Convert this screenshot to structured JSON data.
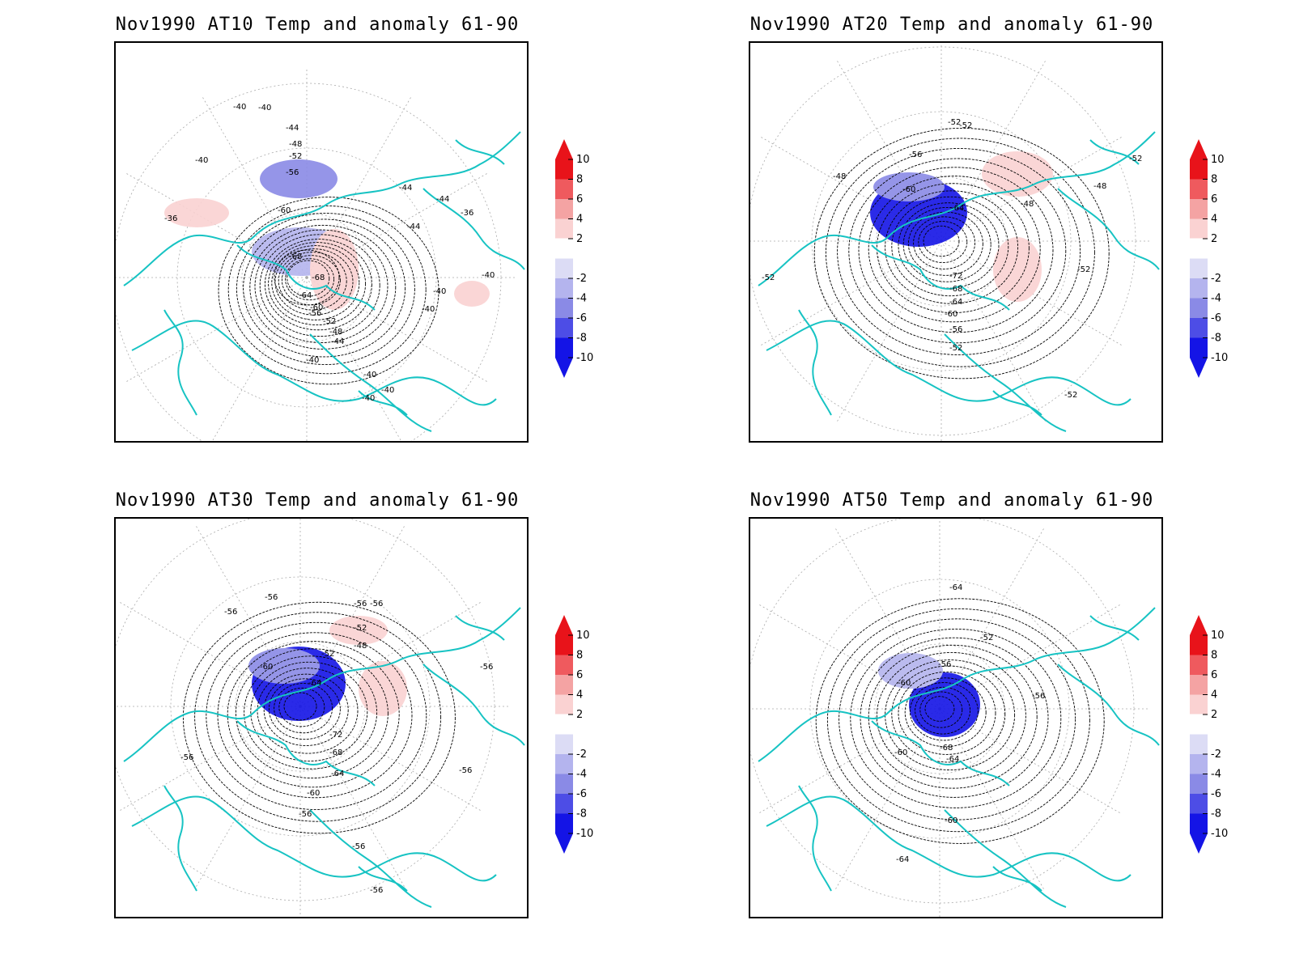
{
  "panels": [
    {
      "title": "Nov1990 AT10 Temp and anomaly 61-90",
      "contour_labels": [
        "-40",
        "-40",
        "-44",
        "-48",
        "-52",
        "-56",
        "-60",
        "-68",
        "-68",
        "-64",
        "-60",
        "-56",
        "-52",
        "-48",
        "-44",
        "-40",
        "-40",
        "-40",
        "-40",
        "-36",
        "-40",
        "-44",
        "-36",
        "-44",
        "-40",
        "-40",
        "-44",
        "-40"
      ],
      "anomaly_blobs": [
        {
          "sign": "neg",
          "level": 6
        },
        {
          "sign": "neg",
          "level": 4
        },
        {
          "sign": "pos",
          "level": 4
        },
        {
          "sign": "pos",
          "level": 2
        },
        {
          "sign": "pos",
          "level": 2
        }
      ]
    },
    {
      "title": "Nov1990 AT20 Temp and anomaly 61-90",
      "contour_labels": [
        "-52",
        "-52",
        "-56",
        "-48",
        "-60",
        "-64",
        "-48",
        "-52",
        "-48",
        "-52",
        "-72",
        "-68",
        "-64",
        "-60",
        "-56",
        "-52",
        "-52",
        "-52"
      ],
      "anomaly_blobs": [
        {
          "sign": "neg",
          "level": 10
        },
        {
          "sign": "neg",
          "level": 6
        },
        {
          "sign": "pos",
          "level": 4
        },
        {
          "sign": "pos",
          "level": 2
        }
      ]
    },
    {
      "title": "Nov1990 AT30 Temp and anomaly 61-90",
      "contour_labels": [
        "-56",
        "-56",
        "-56",
        "-56",
        "-52",
        "-48",
        "-52",
        "-60",
        "-64",
        "-72",
        "-68",
        "-64",
        "-60",
        "-56",
        "-56",
        "-56",
        "-56",
        "-56",
        "-56"
      ],
      "anomaly_blobs": [
        {
          "sign": "neg",
          "level": 10
        },
        {
          "sign": "neg",
          "level": 6
        },
        {
          "sign": "pos",
          "level": 2
        },
        {
          "sign": "pos",
          "level": 2
        }
      ]
    },
    {
      "title": "Nov1990 AT50 Temp and anomaly 61-90",
      "contour_labels": [
        "-64",
        "-52",
        "-56",
        "-60",
        "-68",
        "-64",
        "-56",
        "-60",
        "-60",
        "-64"
      ],
      "anomaly_blobs": [
        {
          "sign": "neg",
          "level": 10
        },
        {
          "sign": "neg",
          "level": 4
        }
      ]
    }
  ],
  "colorbar": {
    "labels": [
      "10",
      "8",
      "6",
      "4",
      "2",
      "-2",
      "-4",
      "-6",
      "-8",
      "-10"
    ],
    "colors": [
      "#e8131a",
      "#ef5a5e",
      "#f4a3a3",
      "#fad2d2",
      "#ffffff",
      "#dcdcf5",
      "#b4b4ee",
      "#8a8ae6",
      "#4d4de6",
      "#1414e6"
    ]
  },
  "colors": {
    "coastline": "#17c3c3",
    "contour": "#000000",
    "grid": "#aaaaaa"
  }
}
